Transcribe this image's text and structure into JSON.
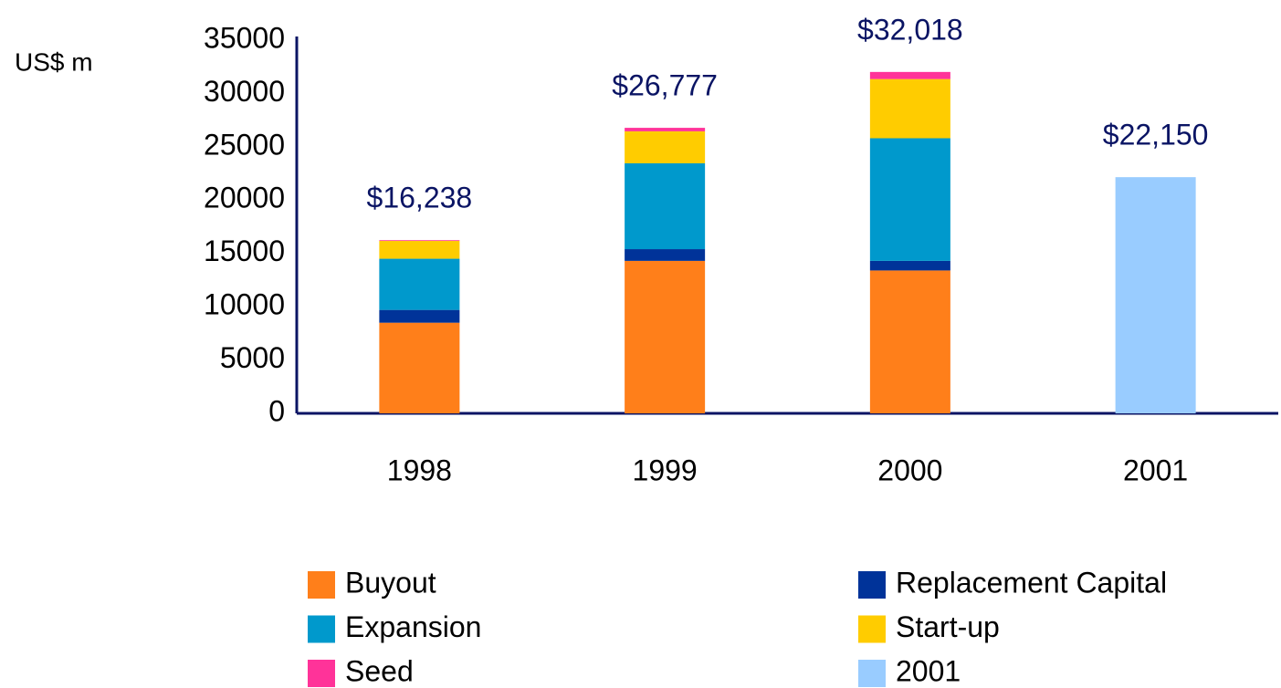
{
  "chart_data": {
    "type": "stacked_bar",
    "y_axis_label": "US$ m",
    "categories": [
      "1998",
      "1999",
      "2000",
      "2001"
    ],
    "series": [
      {
        "name": "Buyout",
        "color": "#ff7f1a",
        "values": [
          8500,
          14300,
          13400,
          null
        ]
      },
      {
        "name": "Replacement Capital",
        "color": "#003399",
        "values": [
          1200,
          1100,
          900,
          null
        ]
      },
      {
        "name": "Expansion",
        "color": "#0099cc",
        "values": [
          4800,
          8050,
          11500,
          null
        ]
      },
      {
        "name": "Start-up",
        "color": "#ffcc00",
        "values": [
          1670,
          3000,
          5550,
          null
        ]
      },
      {
        "name": "Seed",
        "color": "#ff3399",
        "values": [
          68,
          327,
          668,
          null
        ]
      },
      {
        "name": "2001",
        "color": "#99ccff",
        "values": [
          null,
          null,
          null,
          22150
        ]
      }
    ],
    "totals": [
      16238,
      26777,
      32018,
      22150
    ],
    "total_labels": [
      "$16,238",
      "$26,777",
      "$32,018",
      "$22,150"
    ],
    "ylim": [
      0,
      35000
    ],
    "yticks": [
      0,
      5000,
      10000,
      15000,
      20000,
      25000,
      30000,
      35000
    ],
    "grid": false,
    "legend": "bottom"
  }
}
